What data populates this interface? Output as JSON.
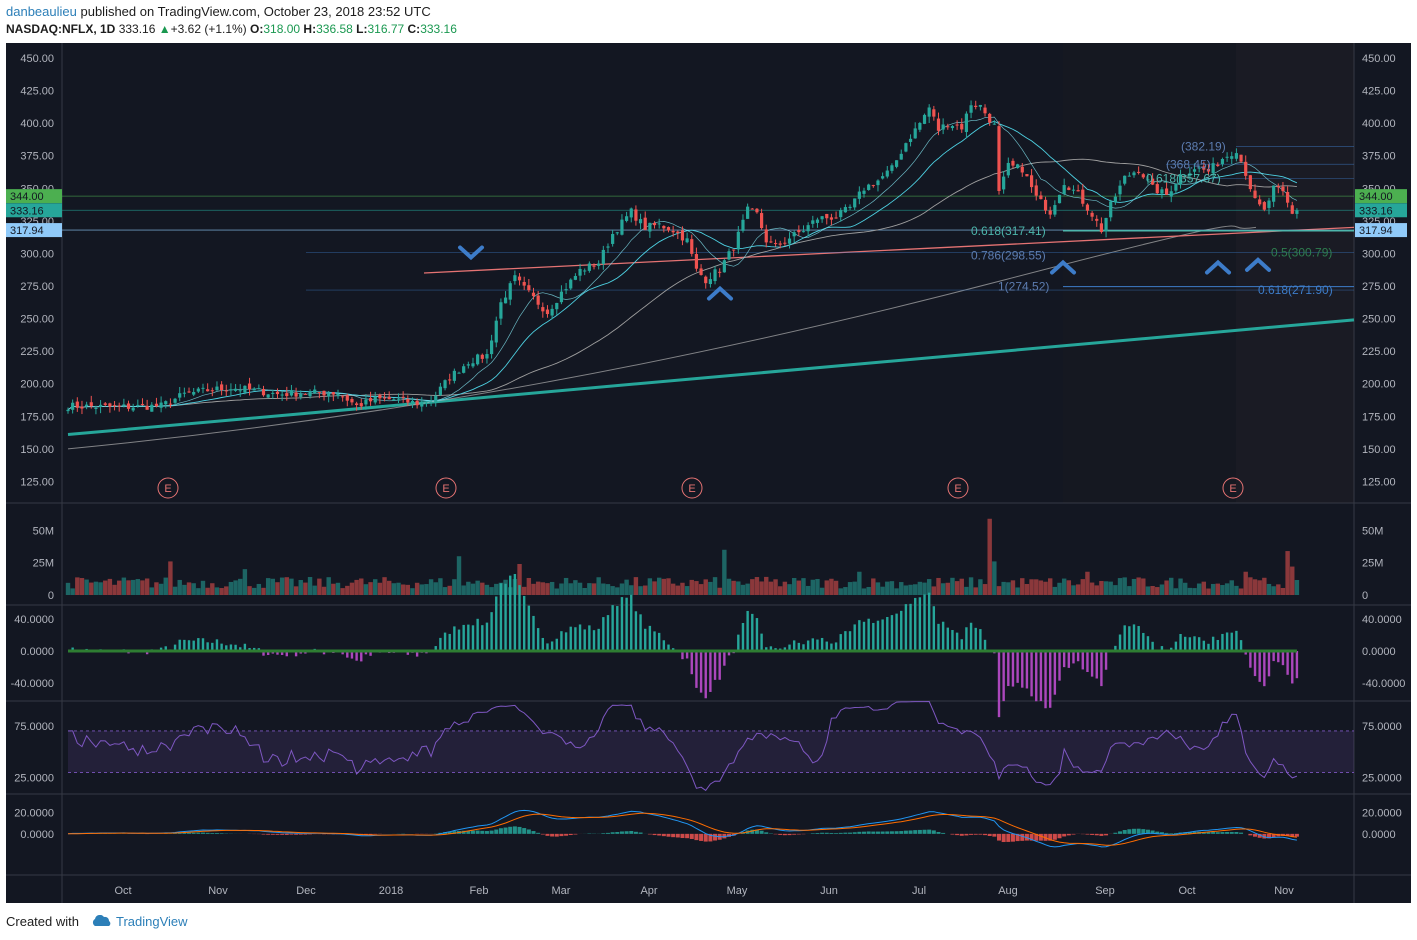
{
  "header": {
    "user": "danbeaulieu",
    "published": "published on TradingView.com, October 23, 2018 23:52 UTC",
    "symbol": "NASDAQ:NFLX, 1D",
    "last": "333.16",
    "arrow": "▲",
    "change": "+3.62 (+1.1%)",
    "o_label": "O:",
    "o": "318.00",
    "h_label": "H:",
    "h": "336.58",
    "l_label": "L:",
    "l": "316.77",
    "c_label": "C:",
    "c": "333.16"
  },
  "footer": {
    "created": "Created with",
    "brand": "TradingView"
  },
  "colors": {
    "background": "#131722",
    "up": "#26a69a",
    "down": "#ef5350",
    "trendline": "#26a69a",
    "resistance": "#e57373",
    "fib": "#3d7cc9",
    "arrows": "#3d7cc9",
    "rsi": "#7e57c2",
    "macd": "#2196f3",
    "signal": "#ff6d00"
  },
  "chart_data": [
    {
      "type": "candlestick",
      "panel": "price",
      "ylim": [
        110,
        460
      ],
      "y_ticks": [
        "450.00",
        "425.00",
        "400.00",
        "375.00",
        "350.00",
        "325.00",
        "300.00",
        "275.00",
        "250.00",
        "225.00",
        "200.00",
        "175.00",
        "150.00",
        "125.00"
      ],
      "x_ticks": [
        "Oct",
        "Nov",
        "Dec",
        "2018",
        "Feb",
        "Mar",
        "Apr",
        "May",
        "Jun",
        "Jul",
        "Aug",
        "Sep",
        "Oct",
        "Nov"
      ],
      "price_labels": [
        {
          "text": "344.00",
          "color": "#4caf50"
        },
        {
          "text": "333.16",
          "color": "#26a69a"
        },
        {
          "text": "317.94",
          "color": "#90caf9"
        }
      ],
      "fib_labels": [
        {
          "text": "0.618(317.41)",
          "color": "#4db6ac"
        },
        {
          "text": "0.786(298.55)",
          "color": "#5c7cb0"
        },
        {
          "text": "1(274.52)",
          "color": "#5c7cb0"
        },
        {
          "text": "(382.19)",
          "color": "#5c7cb0"
        },
        {
          "text": "(368.45)",
          "color": "#5c7cb0"
        },
        {
          "text": "0.618(357.67)",
          "color": "#4db6ac"
        },
        {
          "text": "0.5(300.79)",
          "color": "#2e7d4f"
        },
        {
          "text": "0.618(271.90)",
          "color": "#3d7cc9"
        }
      ],
      "earnings": [
        "E",
        "E",
        "E",
        "E",
        "E"
      ],
      "anchors": [
        {
          "i": 0,
          "c": 183
        },
        {
          "i": 10,
          "c": 182
        },
        {
          "i": 20,
          "c": 183
        },
        {
          "i": 25,
          "c": 192
        },
        {
          "i": 30,
          "c": 195
        },
        {
          "i": 35,
          "c": 197
        },
        {
          "i": 40,
          "c": 195
        },
        {
          "i": 45,
          "c": 192
        },
        {
          "i": 50,
          "c": 193
        },
        {
          "i": 55,
          "c": 193
        },
        {
          "i": 58,
          "c": 193
        },
        {
          "i": 62,
          "c": 183
        },
        {
          "i": 66,
          "c": 188
        },
        {
          "i": 70,
          "c": 188
        },
        {
          "i": 75,
          "c": 185
        },
        {
          "i": 78,
          "c": 187
        },
        {
          "i": 82,
          "c": 205
        },
        {
          "i": 86,
          "c": 217
        },
        {
          "i": 90,
          "c": 222
        },
        {
          "i": 93,
          "c": 262
        },
        {
          "i": 96,
          "c": 281
        },
        {
          "i": 98,
          "c": 273
        },
        {
          "i": 101,
          "c": 262
        },
        {
          "i": 103,
          "c": 255
        },
        {
          "i": 106,
          "c": 270
        },
        {
          "i": 110,
          "c": 287
        },
        {
          "i": 114,
          "c": 293
        },
        {
          "i": 117,
          "c": 315
        },
        {
          "i": 121,
          "c": 332
        },
        {
          "i": 124,
          "c": 320
        },
        {
          "i": 127,
          "c": 322
        },
        {
          "i": 130,
          "c": 318
        },
        {
          "i": 133,
          "c": 310
        },
        {
          "i": 135,
          "c": 287
        },
        {
          "i": 137,
          "c": 280
        },
        {
          "i": 140,
          "c": 288
        },
        {
          "i": 143,
          "c": 305
        },
        {
          "i": 146,
          "c": 333
        },
        {
          "i": 148,
          "c": 330
        },
        {
          "i": 150,
          "c": 310
        },
        {
          "i": 152,
          "c": 305
        },
        {
          "i": 155,
          "c": 312
        },
        {
          "i": 158,
          "c": 318
        },
        {
          "i": 161,
          "c": 327
        },
        {
          "i": 165,
          "c": 328
        },
        {
          "i": 168,
          "c": 335
        },
        {
          "i": 171,
          "c": 350
        },
        {
          "i": 174,
          "c": 356
        },
        {
          "i": 177,
          "c": 365
        },
        {
          "i": 180,
          "c": 385
        },
        {
          "i": 183,
          "c": 400
        },
        {
          "i": 185,
          "c": 412
        },
        {
          "i": 187,
          "c": 395
        },
        {
          "i": 189,
          "c": 400
        },
        {
          "i": 192,
          "c": 397
        },
        {
          "i": 194,
          "c": 415
        },
        {
          "i": 196,
          "c": 413
        },
        {
          "i": 199,
          "c": 398
        },
        {
          "i": 200,
          "c": 346
        },
        {
          "i": 202,
          "c": 367
        },
        {
          "i": 205,
          "c": 365
        },
        {
          "i": 208,
          "c": 343
        },
        {
          "i": 211,
          "c": 332
        },
        {
          "i": 214,
          "c": 355
        },
        {
          "i": 217,
          "c": 345
        },
        {
          "i": 220,
          "c": 330
        },
        {
          "i": 222,
          "c": 318
        },
        {
          "i": 224,
          "c": 337
        },
        {
          "i": 227,
          "c": 358
        },
        {
          "i": 230,
          "c": 365
        },
        {
          "i": 233,
          "c": 350
        },
        {
          "i": 236,
          "c": 345
        },
        {
          "i": 239,
          "c": 360
        },
        {
          "i": 242,
          "c": 366
        },
        {
          "i": 245,
          "c": 363
        },
        {
          "i": 248,
          "c": 373
        },
        {
          "i": 251,
          "c": 380
        },
        {
          "i": 253,
          "c": 362
        },
        {
          "i": 255,
          "c": 340
        },
        {
          "i": 257,
          "c": 332
        },
        {
          "i": 259,
          "c": 350
        },
        {
          "i": 261,
          "c": 346
        },
        {
          "i": 263,
          "c": 330
        },
        {
          "i": 264,
          "c": 333
        }
      ]
    },
    {
      "type": "bar",
      "panel": "volume",
      "ylim": [
        0,
        65
      ],
      "y_ticks": [
        "50M",
        "25M",
        "0"
      ],
      "unit": "M",
      "spikes": [
        {
          "i": 22,
          "v": 26
        },
        {
          "i": 38,
          "v": 20
        },
        {
          "i": 84,
          "v": 30
        },
        {
          "i": 97,
          "v": 24
        },
        {
          "i": 141,
          "v": 35
        },
        {
          "i": 150,
          "v": 14
        },
        {
          "i": 170,
          "v": 18
        },
        {
          "i": 198,
          "v": 59
        },
        {
          "i": 199,
          "v": 26
        },
        {
          "i": 219,
          "v": 18
        },
        {
          "i": 253,
          "v": 18
        },
        {
          "i": 262,
          "v": 34
        },
        {
          "i": 263,
          "v": 22
        }
      ]
    },
    {
      "type": "bar",
      "panel": "oscillator",
      "ylim": [
        -55,
        55
      ],
      "y_ticks": [
        "40.0000",
        "0.0000",
        "-40.0000"
      ]
    },
    {
      "type": "line",
      "panel": "rsi",
      "ylim": [
        15,
        95
      ],
      "y_ticks": [
        "75.0000",
        "25.0000"
      ],
      "bands": [
        70,
        30
      ]
    },
    {
      "type": "line",
      "panel": "macd",
      "ylim": [
        -35,
        30
      ],
      "y_ticks": [
        "20.0000",
        "0.0000"
      ],
      "series": [
        {
          "values_from": "price",
          "kind": "macd"
        },
        {
          "values_from": "price",
          "kind": "signal"
        }
      ]
    }
  ]
}
